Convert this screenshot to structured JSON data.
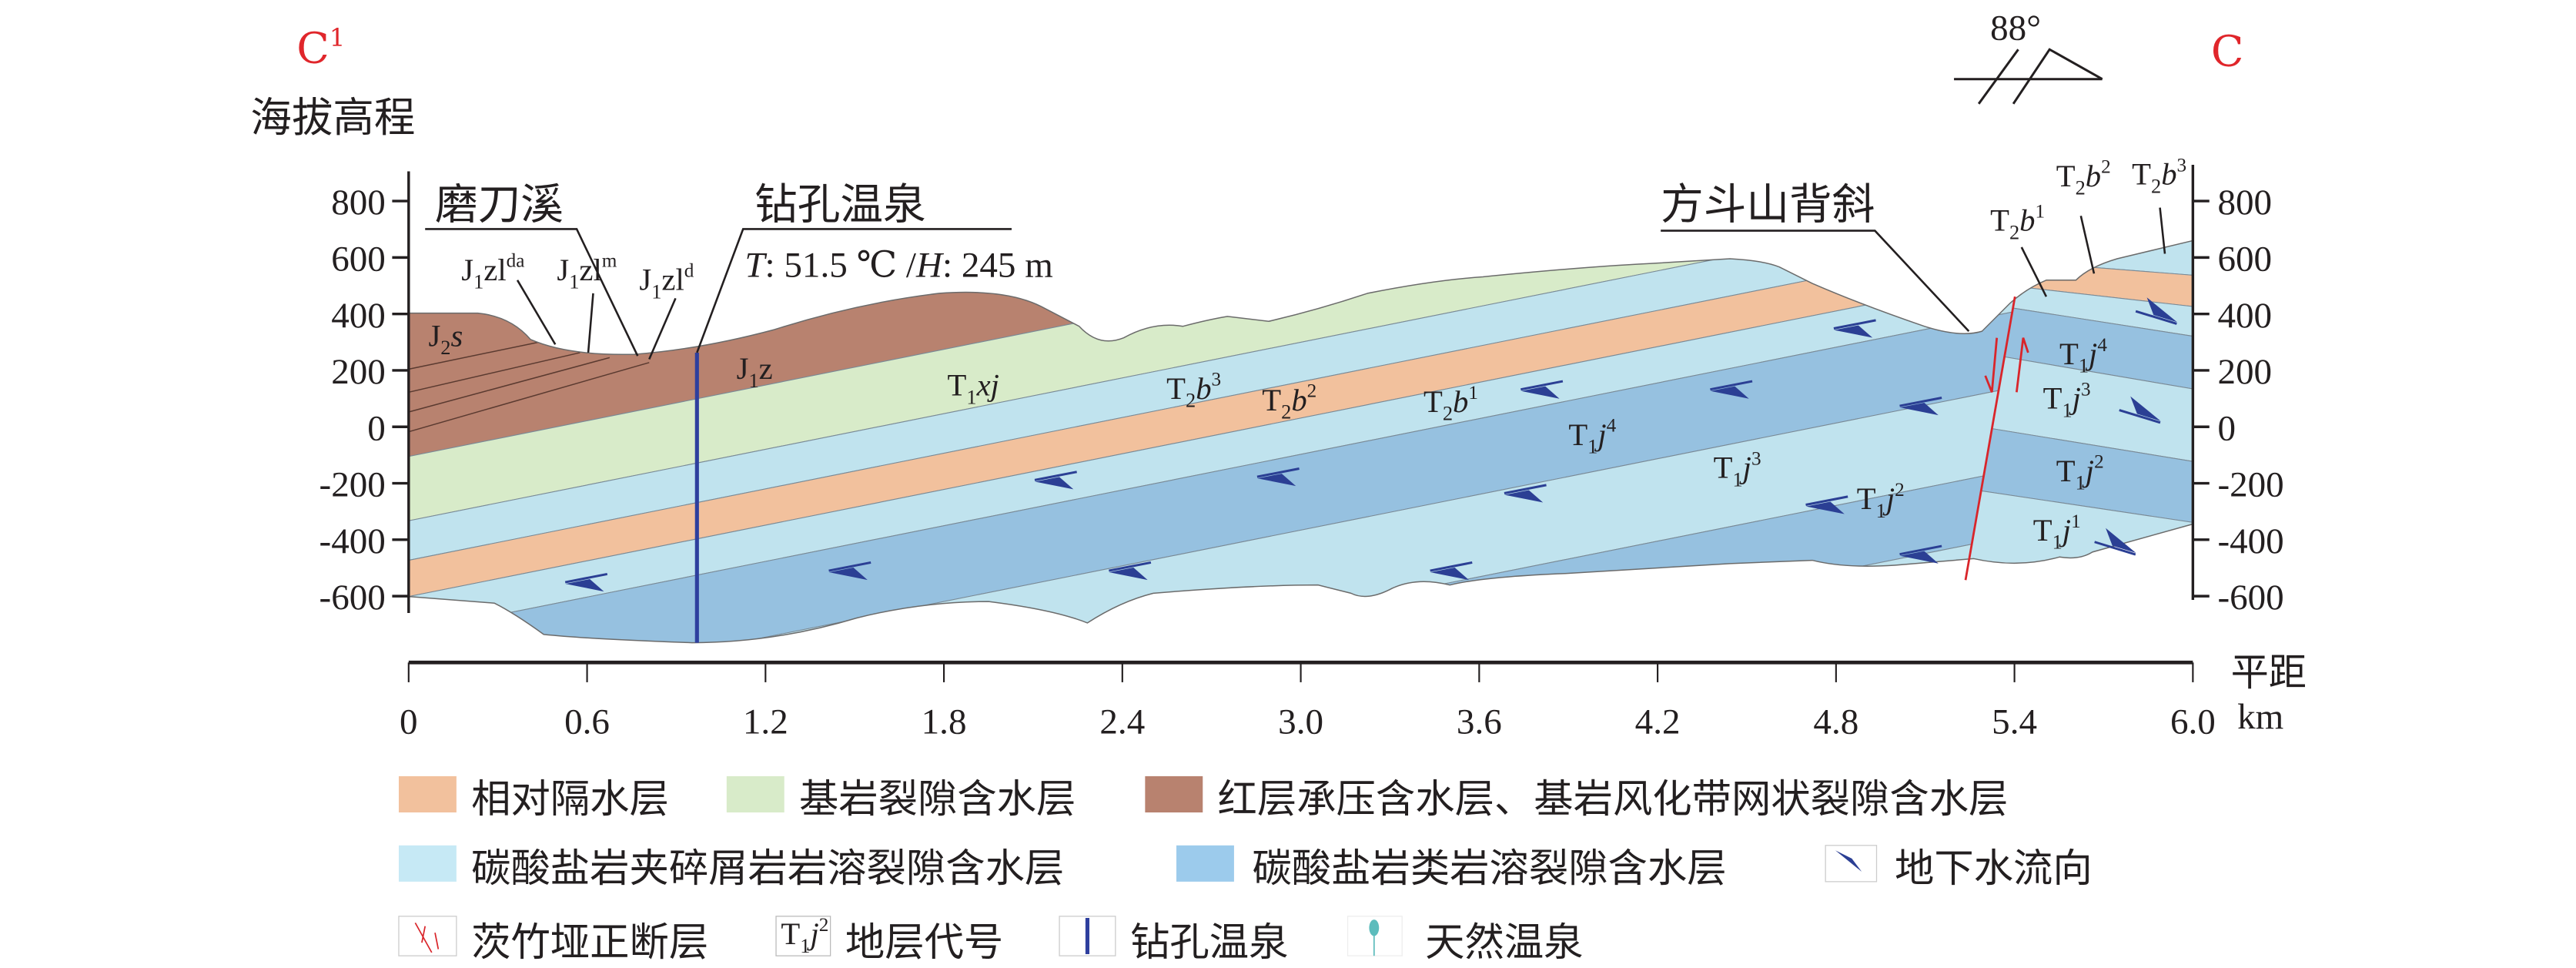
{
  "section": {
    "left_end": {
      "letter": "C",
      "sup": "1"
    },
    "right_end": {
      "letter": "C"
    },
    "y_axis_title": "海拔高程",
    "x_axis_title": "平距",
    "x_axis_unit": "km",
    "y_ticks": [
      "800",
      "600",
      "400",
      "200",
      "0",
      "-200",
      "-400",
      "-600"
    ],
    "x_ticks": [
      "0",
      "0.6",
      "1.2",
      "1.8",
      "2.4",
      "3.0",
      "3.6",
      "4.2",
      "4.8",
      "5.4",
      "6.0"
    ],
    "dip_angle": "88°"
  },
  "annotations": {
    "stream": "磨刀溪",
    "borehole": "钻孔温泉",
    "borehole_info": {
      "t_label": "T",
      "t_value": ": 51.5 ℃ /",
      "h_label": "H",
      "h_value": ": 245 m"
    },
    "anticline": "方斗山背斜"
  },
  "strata": {
    "j2s": {
      "t": "J",
      "s": "2",
      "m": "s",
      "p": ""
    },
    "j1zlda": {
      "t": "J",
      "s": "1",
      "m": "zl",
      "p": "da"
    },
    "j1zlm": {
      "t": "J",
      "s": "1",
      "m": "zl",
      "p": "m"
    },
    "j1zld": {
      "t": "J",
      "s": "1",
      "m": "zl",
      "p": "d"
    },
    "j1z": {
      "t": "J",
      "s": "1",
      "m": "z",
      "p": ""
    },
    "t1xj": {
      "t": "T",
      "s": "1",
      "m": "xj",
      "p": ""
    },
    "t2b3_left": {
      "t": "T",
      "s": "2",
      "m": "b",
      "p": "3"
    },
    "t2b2_left": {
      "t": "T",
      "s": "2",
      "m": "b",
      "p": "2"
    },
    "t2b1_left": {
      "t": "T",
      "s": "2",
      "m": "b",
      "p": "1"
    },
    "t1j4_left": {
      "t": "T",
      "s": "1",
      "m": "j",
      "p": "4"
    },
    "t1j3_left": {
      "t": "T",
      "s": "1",
      "m": "j",
      "p": "3"
    },
    "t1j2_left": {
      "t": "T",
      "s": "1",
      "m": "j",
      "p": "2"
    },
    "t2b1_right": {
      "t": "T",
      "s": "2",
      "m": "b",
      "p": "1"
    },
    "t2b2_right": {
      "t": "T",
      "s": "2",
      "m": "b",
      "p": "2"
    },
    "t2b3_right": {
      "t": "T",
      "s": "2",
      "m": "b",
      "p": "3"
    },
    "t1j4_right": {
      "t": "T",
      "s": "1",
      "m": "j",
      "p": "4"
    },
    "t1j3_right": {
      "t": "T",
      "s": "1",
      "m": "j",
      "p": "3"
    },
    "t1j2_right": {
      "t": "T",
      "s": "1",
      "m": "j",
      "p": "2"
    },
    "t1j1_right": {
      "t": "T",
      "s": "1",
      "m": "j",
      "p": "1"
    }
  },
  "legend": {
    "aquitard": "相对隔水层",
    "bedrock_fissure": "基岩裂隙含水层",
    "red_bed": "红层承压含水层、基岩风化带网状裂隙含水层",
    "carbonate_clastic": "碳酸盐岩夹碎屑岩岩溶裂隙含水层",
    "carbonate": "碳酸盐岩类岩溶裂隙含水层",
    "flow": "地下水流向",
    "fault": "茨竹垭正断层",
    "stratum_code": "地层代号",
    "stratum_code_sample": {
      "t": "T",
      "s": "1",
      "m": "j",
      "p": "2"
    },
    "borehole_spring": "钻孔温泉",
    "natural_spring": "天然温泉"
  },
  "colors": {
    "aquitard": "#f2c19d",
    "bedrock_fissure": "#d8ebc9",
    "red_bed": "#b8826f",
    "carbonate_clastic": "#c0e3ee",
    "carbonate": "#96c1e0",
    "flow_arrow": "#2b3f94",
    "borehole": "#2e3f9e",
    "fault": "#d9252a",
    "spring": "#5cbcbc",
    "section_letter": "#e0262b"
  }
}
